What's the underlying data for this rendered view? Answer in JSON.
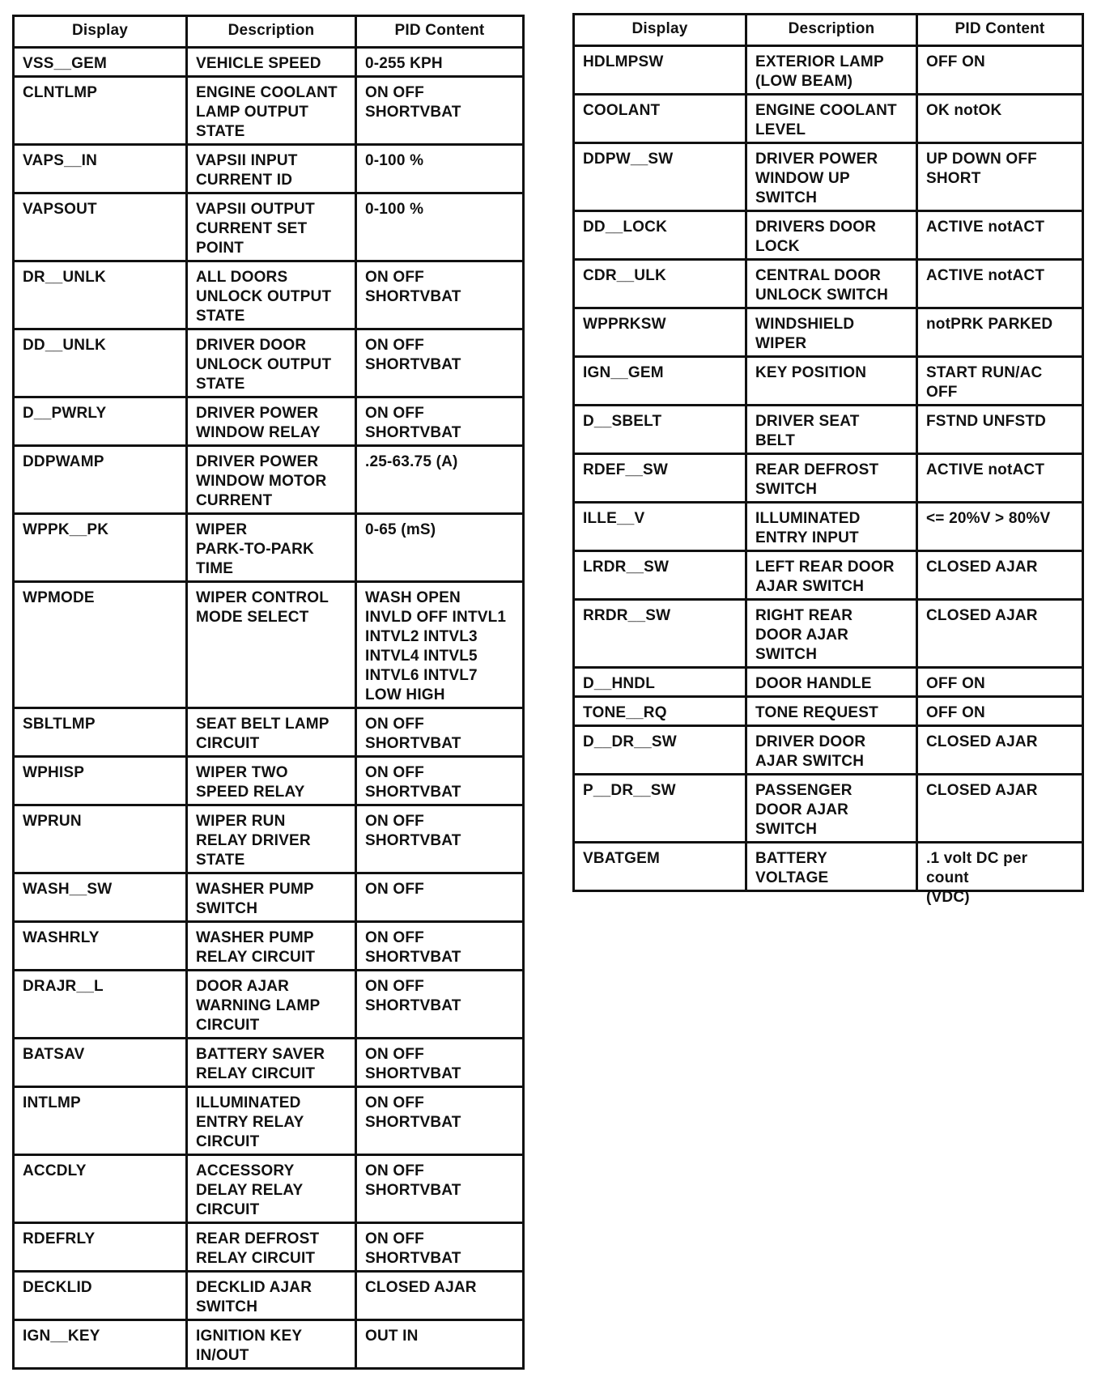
{
  "headers": [
    "Display",
    "Description",
    "PID Content"
  ],
  "left_table": [
    [
      "VSS__GEM",
      "VEHICLE SPEED",
      "0-255 KPH"
    ],
    [
      "CLNTLMP",
      "ENGINE COOLANT\nLAMP OUTPUT\nSTATE",
      "ON OFF\nSHORTVBAT"
    ],
    [
      "VAPS__IN",
      "VAPSII INPUT\nCURRENT ID",
      "0-100 %"
    ],
    [
      "VAPSOUT",
      "VAPSII OUTPUT\nCURRENT SET\nPOINT",
      "0-100 %"
    ],
    [
      "DR__UNLK",
      "ALL DOORS\nUNLOCK OUTPUT\nSTATE",
      "ON OFF\nSHORTVBAT"
    ],
    [
      "DD__UNLK",
      "DRIVER DOOR\nUNLOCK OUTPUT\nSTATE",
      "ON OFF\nSHORTVBAT"
    ],
    [
      "D__PWRLY",
      "DRIVER POWER\nWINDOW RELAY",
      "ON OFF\nSHORTVBAT"
    ],
    [
      "DDPWAMP",
      "DRIVER POWER\nWINDOW MOTOR\nCURRENT",
      ".25-63.75 (A)"
    ],
    [
      "WPPK__PK",
      "WIPER\nPARK-TO-PARK\nTIME",
      "0-65 (mS)"
    ],
    [
      "WPMODE",
      "WIPER CONTROL\nMODE SELECT",
      "WASH OPEN\nINVLD OFF INTVL1\nINTVL2 INTVL3\nINTVL4 INTVL5\nINTVL6 INTVL7\nLOW HIGH"
    ],
    [
      "SBLTLMP",
      "SEAT BELT LAMP\nCIRCUIT",
      "ON OFF\nSHORTVBAT"
    ],
    [
      "WPHISP",
      "WIPER TWO\nSPEED RELAY",
      "ON OFF\nSHORTVBAT"
    ],
    [
      "WPRUN",
      "WIPER RUN\nRELAY DRIVER\nSTATE",
      "ON OFF\nSHORTVBAT"
    ],
    [
      "WASH__SW",
      "WASHER PUMP\nSWITCH",
      "ON OFF"
    ],
    [
      "WASHRLY",
      "WASHER PUMP\nRELAY CIRCUIT",
      "ON OFF\nSHORTVBAT"
    ],
    [
      "DRAJR__L",
      "DOOR AJAR\nWARNING LAMP\nCIRCUIT",
      "ON OFF\nSHORTVBAT"
    ],
    [
      "BATSAV",
      "BATTERY SAVER\nRELAY CIRCUIT",
      "ON OFF\nSHORTVBAT"
    ],
    [
      "INTLMP",
      "ILLUMINATED\nENTRY RELAY\nCIRCUIT",
      "ON OFF\nSHORTVBAT"
    ],
    [
      "ACCDLY",
      "ACCESSORY\nDELAY RELAY\nCIRCUIT",
      "ON OFF\nSHORTVBAT"
    ],
    [
      "RDEFRLY",
      "REAR DEFROST\nRELAY CIRCUIT",
      "ON OFF\nSHORTVBAT"
    ],
    [
      "DECKLID",
      "DECKLID AJAR\nSWITCH",
      "CLOSED AJAR"
    ],
    [
      "IGN__KEY",
      "IGNITION KEY\nIN/OUT",
      "OUT IN"
    ]
  ],
  "right_table": [
    [
      "HDLMPSW",
      "EXTERIOR LAMP\n(LOW BEAM)",
      "OFF ON"
    ],
    [
      "COOLANT",
      "ENGINE COOLANT\nLEVEL",
      "OK notOK"
    ],
    [
      "DDPW__SW",
      "DRIVER POWER\nWINDOW UP\nSWITCH",
      "UP DOWN OFF\nSHORT"
    ],
    [
      "DD__LOCK",
      "DRIVERS DOOR\nLOCK",
      "ACTIVE notACT"
    ],
    [
      "CDR__ULK",
      "CENTRAL DOOR\nUNLOCK SWITCH",
      "ACTIVE notACT"
    ],
    [
      "WPPRKSW",
      "WINDSHIELD\nWIPER",
      "notPRK PARKED"
    ],
    [
      "IGN__GEM",
      "KEY POSITION",
      "START RUN/AC\nOFF"
    ],
    [
      "D__SBELT",
      "DRIVER SEAT\nBELT",
      "FSTND UNFSTD"
    ],
    [
      "RDEF__SW",
      "REAR DEFROST\nSWITCH",
      "ACTIVE notACT"
    ],
    [
      "ILLE__V",
      "ILLUMINATED\nENTRY INPUT",
      "<= 20%V > 80%V"
    ],
    [
      "LRDR__SW",
      "LEFT REAR DOOR\nAJAR SWITCH",
      "CLOSED AJAR"
    ],
    [
      "RRDR__SW",
      "RIGHT REAR\nDOOR AJAR\nSWITCH",
      "CLOSED AJAR"
    ],
    [
      "D__HNDL",
      "DOOR HANDLE",
      "OFF ON"
    ],
    [
      "TONE__RQ",
      "TONE REQUEST",
      "OFF ON"
    ],
    [
      "D__DR__SW",
      "DRIVER DOOR\nAJAR SWITCH",
      "CLOSED AJAR"
    ],
    [
      "P__DR__SW",
      "PASSENGER\nDOOR AJAR\nSWITCH",
      "CLOSED AJAR"
    ],
    [
      "VBATGEM",
      "BATTERY\nVOLTAGE",
      ".1 volt DC per count\n(VDC)"
    ]
  ]
}
